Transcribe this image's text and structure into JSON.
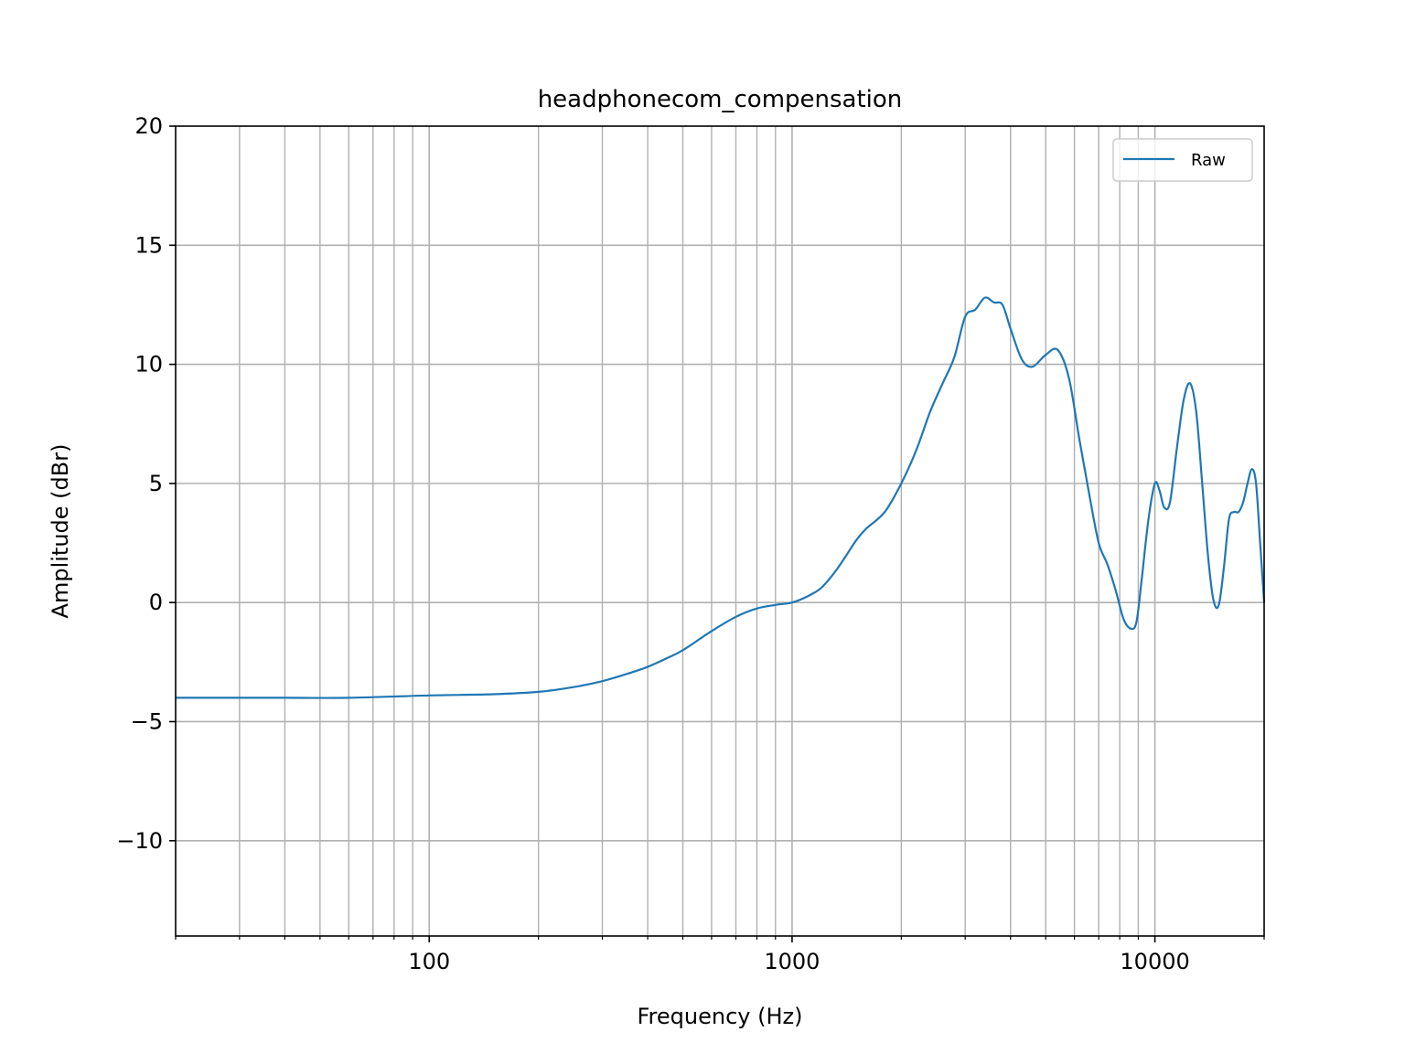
{
  "chart_data": {
    "type": "line",
    "title": "headphonecom_compensation",
    "xlabel": "Frequency (Hz)",
    "ylabel": "Amplitude (dBr)",
    "xscale": "log",
    "xlim": [
      20,
      20000
    ],
    "ylim": [
      -14,
      20
    ],
    "grid": true,
    "grid_minor_x": true,
    "legend_position": "top-right",
    "x_ticks": [
      100,
      1000,
      10000
    ],
    "x_tick_labels": [
      "100",
      "1000",
      "10000"
    ],
    "y_ticks": [
      -10,
      -5,
      0,
      5,
      10,
      15,
      20
    ],
    "y_tick_labels": [
      "−10",
      "−5",
      "0",
      "5",
      "10",
      "15",
      "20"
    ],
    "series": [
      {
        "name": "Raw",
        "color": "#1f77b4",
        "x": [
          20,
          30,
          40,
          60,
          100,
          150,
          200,
          250,
          300,
          350,
          400,
          450,
          500,
          600,
          700,
          800,
          900,
          1000,
          1100,
          1200,
          1300,
          1400,
          1500,
          1600,
          1800,
          2000,
          2200,
          2400,
          2600,
          2800,
          3000,
          3200,
          3400,
          3600,
          3800,
          4000,
          4300,
          4600,
          5000,
          5400,
          5800,
          6200,
          6600,
          7000,
          7400,
          7800,
          8200,
          8600,
          8900,
          9200,
          9600,
          10000,
          10300,
          10600,
          11000,
          11500,
          12000,
          12500,
          13000,
          13500,
          14000,
          14500,
          15000,
          15500,
          16000,
          16500,
          17000,
          17500,
          18000,
          18500,
          19000,
          19500,
          20000
        ],
        "values": [
          -4.0,
          -4.0,
          -4.0,
          -4.0,
          -3.9,
          -3.85,
          -3.75,
          -3.55,
          -3.3,
          -3.0,
          -2.7,
          -2.35,
          -2.0,
          -1.2,
          -0.6,
          -0.25,
          -0.1,
          0.0,
          0.25,
          0.6,
          1.2,
          1.9,
          2.6,
          3.1,
          3.8,
          5.0,
          6.4,
          8.0,
          9.2,
          10.3,
          12.0,
          12.3,
          12.8,
          12.6,
          12.5,
          11.5,
          10.2,
          9.9,
          10.4,
          10.6,
          9.4,
          6.8,
          4.5,
          2.5,
          1.6,
          0.5,
          -0.7,
          -1.1,
          -0.8,
          1.0,
          3.5,
          5.0,
          4.7,
          4.0,
          4.2,
          6.5,
          8.5,
          9.2,
          8.0,
          5.0,
          2.0,
          0.1,
          -0.1,
          1.5,
          3.5,
          3.8,
          3.8,
          4.2,
          5.0,
          5.6,
          5.0,
          2.5,
          0.0
        ]
      }
    ]
  }
}
